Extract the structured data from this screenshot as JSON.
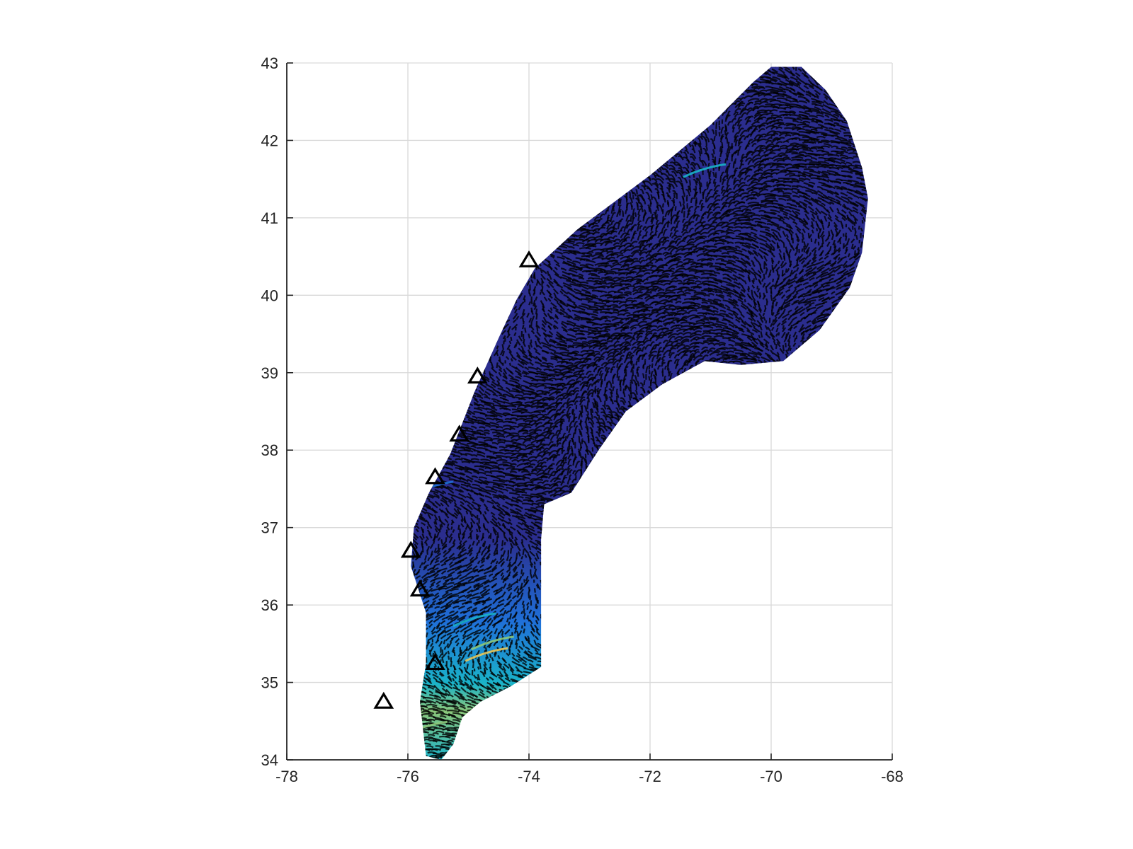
{
  "chart_data": {
    "type": "scatter",
    "title": "",
    "xlabel": "",
    "ylabel": "",
    "xlim": [
      -78,
      -68
    ],
    "ylim": [
      34,
      43
    ],
    "grid": true,
    "x_ticks": [
      -78,
      -76,
      -74,
      -72,
      -70,
      -68
    ],
    "y_ticks": [
      34,
      35,
      36,
      37,
      38,
      39,
      40,
      41,
      42,
      43
    ],
    "x_tick_labels": [
      "-78",
      "-76",
      "-74",
      "-72",
      "-70",
      "-68"
    ],
    "y_tick_labels": [
      "34",
      "35",
      "36",
      "37",
      "38",
      "39",
      "40",
      "41",
      "42",
      "43"
    ],
    "colors": {
      "dark": "#2b2d8e",
      "blue": "#1f6fd8",
      "cyan": "#1ab3c9",
      "green": "#8cc87a",
      "yellow": "#e8c75a",
      "line": "#000000"
    },
    "domain_outline": [
      [
        -73.9,
        40.35
      ],
      [
        -73.2,
        40.85
      ],
      [
        -72.0,
        41.55
      ],
      [
        -71.0,
        42.2
      ],
      [
        -70.3,
        42.75
      ],
      [
        -70.0,
        42.95
      ],
      [
        -69.5,
        42.95
      ],
      [
        -69.1,
        42.65
      ],
      [
        -68.75,
        42.25
      ],
      [
        -68.5,
        41.65
      ],
      [
        -68.4,
        41.25
      ],
      [
        -68.5,
        40.55
      ],
      [
        -68.7,
        40.1
      ],
      [
        -69.2,
        39.55
      ],
      [
        -69.8,
        39.15
      ],
      [
        -70.5,
        39.1
      ],
      [
        -71.1,
        39.15
      ],
      [
        -71.8,
        38.85
      ],
      [
        -72.4,
        38.5
      ],
      [
        -72.85,
        38.0
      ],
      [
        -73.3,
        37.45
      ],
      [
        -73.75,
        37.3
      ],
      [
        -73.8,
        36.85
      ],
      [
        -73.8,
        36.2
      ],
      [
        -73.8,
        35.7
      ],
      [
        -73.8,
        35.2
      ],
      [
        -74.3,
        34.95
      ],
      [
        -74.8,
        34.75
      ],
      [
        -75.1,
        34.55
      ],
      [
        -75.25,
        34.2
      ],
      [
        -75.45,
        34.0
      ],
      [
        -75.7,
        34.05
      ],
      [
        -75.8,
        34.75
      ],
      [
        -75.7,
        35.25
      ],
      [
        -75.7,
        35.9
      ],
      [
        -75.95,
        36.5
      ],
      [
        -75.9,
        37.0
      ],
      [
        -75.65,
        37.45
      ],
      [
        -75.3,
        37.95
      ],
      [
        -75.1,
        38.35
      ],
      [
        -74.9,
        38.75
      ],
      [
        -74.5,
        39.45
      ],
      [
        -74.2,
        39.95
      ]
    ],
    "markers": {
      "shape": "triangle",
      "x": [
        -74.0,
        -74.85,
        -75.15,
        -75.55,
        -75.95,
        -75.8,
        -75.55,
        -76.4
      ],
      "y": [
        40.45,
        38.95,
        38.2,
        37.65,
        36.7,
        36.2,
        35.25,
        34.75
      ]
    }
  }
}
